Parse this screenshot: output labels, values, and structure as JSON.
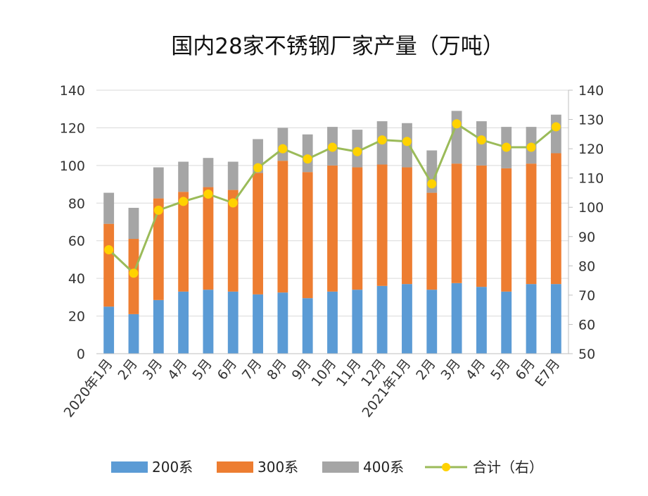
{
  "chart_data": {
    "type": "bar",
    "stacked": true,
    "title": "国内28家不锈钢厂家产量（万吨）",
    "categories": [
      "2020年1月",
      "2月",
      "3月",
      "4月",
      "5月",
      "6月",
      "7月",
      "8月",
      "9月",
      "10月",
      "11月",
      "12月",
      "2021年1月",
      "2月",
      "3月",
      "4月",
      "5月",
      "6月",
      "E7月"
    ],
    "series": [
      {
        "name": "200系",
        "axis": "left",
        "color": "#5b9bd5",
        "values": [
          25,
          21,
          28.5,
          33,
          34,
          33,
          31.5,
          32.5,
          29.5,
          33,
          34,
          36,
          37,
          34,
          37.5,
          35.5,
          33,
          37,
          37
        ]
      },
      {
        "name": "300系",
        "axis": "left",
        "color": "#ed7d31",
        "values": [
          44,
          40,
          54,
          53,
          54.5,
          54,
          64.5,
          70,
          67,
          67,
          65,
          64.5,
          62,
          51.5,
          63.5,
          64.5,
          65.5,
          64,
          69.5
        ]
      },
      {
        "name": "400系",
        "axis": "left",
        "color": "#a5a5a5",
        "values": [
          16.5,
          16.5,
          16.5,
          16,
          15.5,
          15,
          18,
          17.5,
          20,
          20.5,
          20,
          23,
          23.5,
          22.5,
          28,
          23.5,
          22,
          19.5,
          20.5
        ]
      },
      {
        "name": "合计（右）",
        "axis": "right",
        "type": "line",
        "color": "#9bbb59",
        "marker_color": "#ffd200",
        "values": [
          85.5,
          77.5,
          99,
          102,
          104.5,
          101.5,
          113.5,
          120,
          116.5,
          120.5,
          119,
          123,
          122.5,
          108,
          128.5,
          123,
          120.5,
          120.5,
          127.5
        ]
      }
    ],
    "y_left": {
      "min": 0,
      "max": 140,
      "ticks": [
        0,
        20,
        40,
        60,
        80,
        100,
        120,
        140
      ]
    },
    "y_right": {
      "min": 50,
      "max": 140,
      "ticks": [
        50,
        60,
        70,
        80,
        90,
        100,
        110,
        120,
        130,
        140
      ]
    },
    "grid": true,
    "legend_position": "bottom"
  }
}
